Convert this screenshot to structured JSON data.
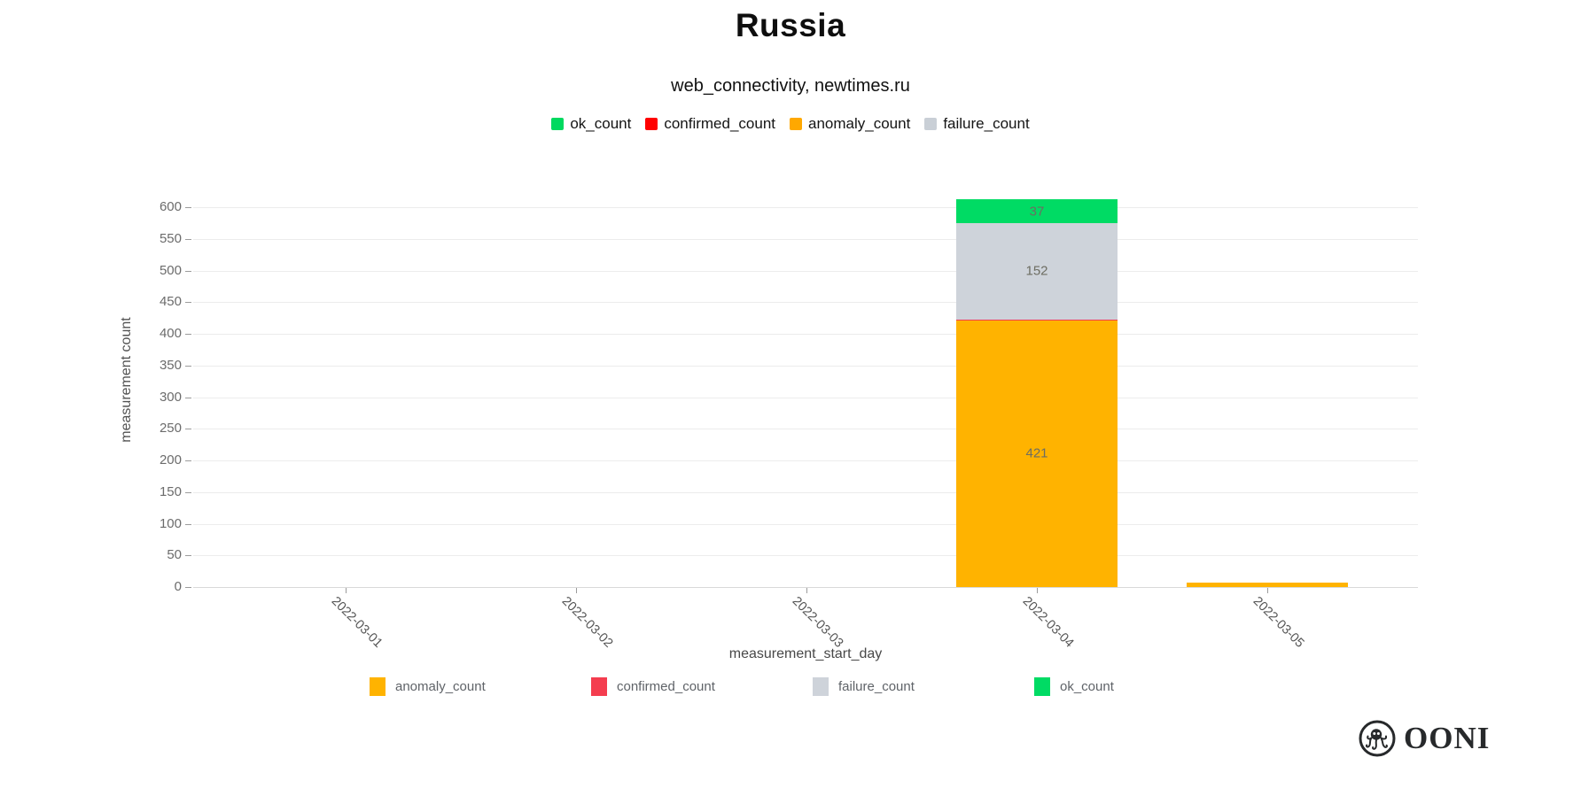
{
  "header": {
    "title": "Russia",
    "subtitle": "web_connectivity, newtimes.ru"
  },
  "legend_top": {
    "items": [
      {
        "label": "ok_count",
        "color": "#00d95f"
      },
      {
        "label": "confirmed_count",
        "color": "#ff0000"
      },
      {
        "label": "anomaly_count",
        "color": "#ffa800"
      },
      {
        "label": "failure_count",
        "color": "#c9cfd6"
      }
    ]
  },
  "legend_bottom": {
    "items": [
      {
        "label": "anomaly_count",
        "color": "#ffb300"
      },
      {
        "label": "confirmed_count",
        "color": "#f43d4f"
      },
      {
        "label": "failure_count",
        "color": "#ced3da"
      },
      {
        "label": "ok_count",
        "color": "#00db64"
      }
    ]
  },
  "chart_data": {
    "type": "bar",
    "stacked": true,
    "title": "Russia",
    "subtitle": "web_connectivity, newtimes.ru",
    "xlabel": "measurement_start_day",
    "ylabel": "measurement count",
    "categories": [
      "2022-03-01",
      "2022-03-02",
      "2022-03-03",
      "2022-03-04",
      "2022-03-05"
    ],
    "series": [
      {
        "name": "anomaly_count",
        "color": "#ffb300",
        "values": [
          0,
          0,
          0,
          421,
          7
        ]
      },
      {
        "name": "confirmed_count",
        "color": "#f43d4f",
        "values": [
          0,
          0,
          0,
          2,
          0
        ]
      },
      {
        "name": "failure_count",
        "color": "#ced3da",
        "values": [
          0,
          0,
          0,
          152,
          0
        ]
      },
      {
        "name": "ok_count",
        "color": "#00db64",
        "values": [
          0,
          0,
          0,
          37,
          0
        ]
      }
    ],
    "visible_bar_labels": [
      "421",
      "152",
      "37"
    ],
    "ylim": [
      0,
      620
    ],
    "yticks": [
      0,
      50,
      100,
      150,
      200,
      250,
      300,
      350,
      400,
      450,
      500,
      550,
      600
    ],
    "grid": "horizontal",
    "legend_position": "top-center and below-axis"
  },
  "footer": {
    "logo_text": "OONI"
  }
}
